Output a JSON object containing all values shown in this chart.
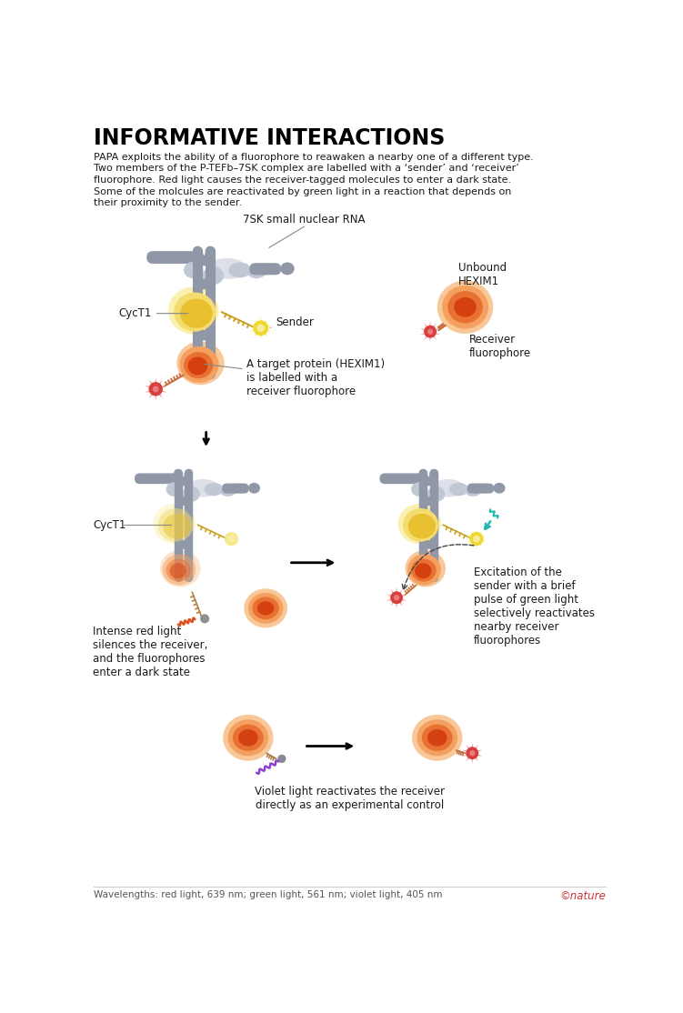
{
  "title": "INFORMATIVE INTERACTIONS",
  "subtitle_lines": [
    "PAPA exploits the ability of a fluorophore to reawaken a nearby one of a different type.",
    "Two members of the P-TEFb–7SK complex are labelled with a ‘sender’ and ‘receiver’",
    "fluorophore. Red light causes the receiver-tagged molecules to enter a dark state.",
    "Some of the molcules are reactivated by green light in a reaction that depends on",
    "their proximity to the sender."
  ],
  "footer_left": "Wavelengths: red light, 639 nm; green light, 561 nm; violet light, 405 nm",
  "footer_right": "©nature",
  "label_7sk": "7SK small nuclear RNA",
  "label_cyct1": "CycT1",
  "label_sender": "Sender",
  "label_target": "A target protein (HEXIM1)\nis labelled with a\nreceiver fluorophore",
  "label_unbound": "Unbound\nHEXIM1",
  "label_receiver_fluor": "Receiver\nfluorophore",
  "label_intense_red": "Intense red light\nsilences the receiver,\nand the fluorophores\nenter a dark state",
  "label_excitation": "Excitation of the\nsender with a brief\npulse of green light\nselectively reactivates\nnearby receiver\nfluorophores",
  "label_violet": "Violet light reactivates the receiver\ndirectly as an experimental control",
  "color_background": "#ffffff",
  "color_title": "#000000",
  "color_body_text": "#1a1a1a",
  "color_orange_dark": "#d44010",
  "color_orange_mid": "#e87030",
  "color_orange_light": "#f4a060",
  "color_orange_pale": "#f8c898",
  "color_yellow_dark": "#d4a010",
  "color_yellow_mid": "#e8c030",
  "color_yellow_light": "#f4dc70",
  "color_yellow_pale": "#faf0b0",
  "color_gray_shape": "#9098a8",
  "color_gray_light": "#c0c8d4",
  "color_gray_pale": "#dde0e8",
  "color_sender_yellow": "#f0d830",
  "color_receiver_red": "#d84040",
  "color_receiver_pink": "#f09090"
}
